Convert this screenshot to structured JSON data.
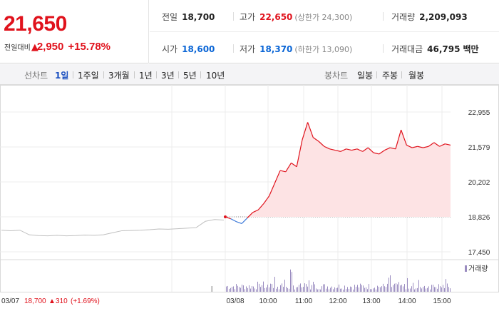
{
  "quote": {
    "price": "21,650",
    "change_label": "전일대비",
    "change_arrow": "▲",
    "change_value": "2,950",
    "change_pct": "+15.78%"
  },
  "stats": {
    "prev_close": {
      "label": "전일",
      "value": "18,700"
    },
    "high": {
      "label": "고가",
      "value": "22,650",
      "sub": "(상한가 24,300)"
    },
    "volume": {
      "label": "거래량",
      "value": "2,209,093"
    },
    "open": {
      "label": "시가",
      "value": "18,600"
    },
    "low": {
      "label": "저가",
      "value": "18,370",
      "sub": "(하한가 13,090)"
    },
    "turnover": {
      "label": "거래대금",
      "value": "46,795",
      "unit": "백만"
    }
  },
  "toolbar": {
    "line_chart_label": "선차트",
    "line_periods": [
      "1일",
      "1주일",
      "3개월",
      "1년",
      "3년",
      "5년",
      "10년"
    ],
    "candle_label": "봉차트",
    "candle_periods": [
      "일봉",
      "주봉",
      "월봉"
    ],
    "active_period": "1일"
  },
  "chart_data": {
    "type": "line",
    "y_ticks": [
      "22,955",
      "21,579",
      "20,202",
      "18,826",
      "17,450"
    ],
    "ylim": [
      17450,
      22955
    ],
    "reference_price": 18826,
    "volume_legend": "거래량",
    "x_ticks": [
      "03/08",
      "10:00",
      "11:00",
      "12:00",
      "13:00",
      "14:00",
      "15:00"
    ],
    "prev_day_info": {
      "date": "03/07",
      "price": "18,700",
      "arrow": "▲",
      "change": "310",
      "pct": "(+1.69%)"
    },
    "prev_day_series": [
      18300,
      18280,
      18300,
      18120,
      18090,
      18080,
      18100,
      18080,
      18090,
      18110,
      18100,
      18120,
      18200,
      18280,
      18290,
      18300,
      18320,
      18350,
      18340,
      18360,
      18380,
      18400,
      18650,
      18720,
      18700
    ],
    "today_series": [
      18826,
      18750,
      18640,
      18560,
      18780,
      19000,
      19100,
      19350,
      19650,
      20150,
      20650,
      20600,
      20950,
      20800,
      21850,
      22550,
      21950,
      21800,
      21600,
      21500,
      21450,
      21400,
      21500,
      21450,
      21500,
      21400,
      21550,
      21350,
      21300,
      21450,
      21550,
      21500,
      22250,
      21650,
      21550,
      21600,
      21550,
      21600,
      21750,
      21600,
      21700,
      21650
    ],
    "colors": {
      "up": "#e0121c",
      "down": "#3d7ad9",
      "fill": "#fde3e4",
      "prev": "#c0c0c0",
      "volume": "#9a8cc0"
    }
  }
}
